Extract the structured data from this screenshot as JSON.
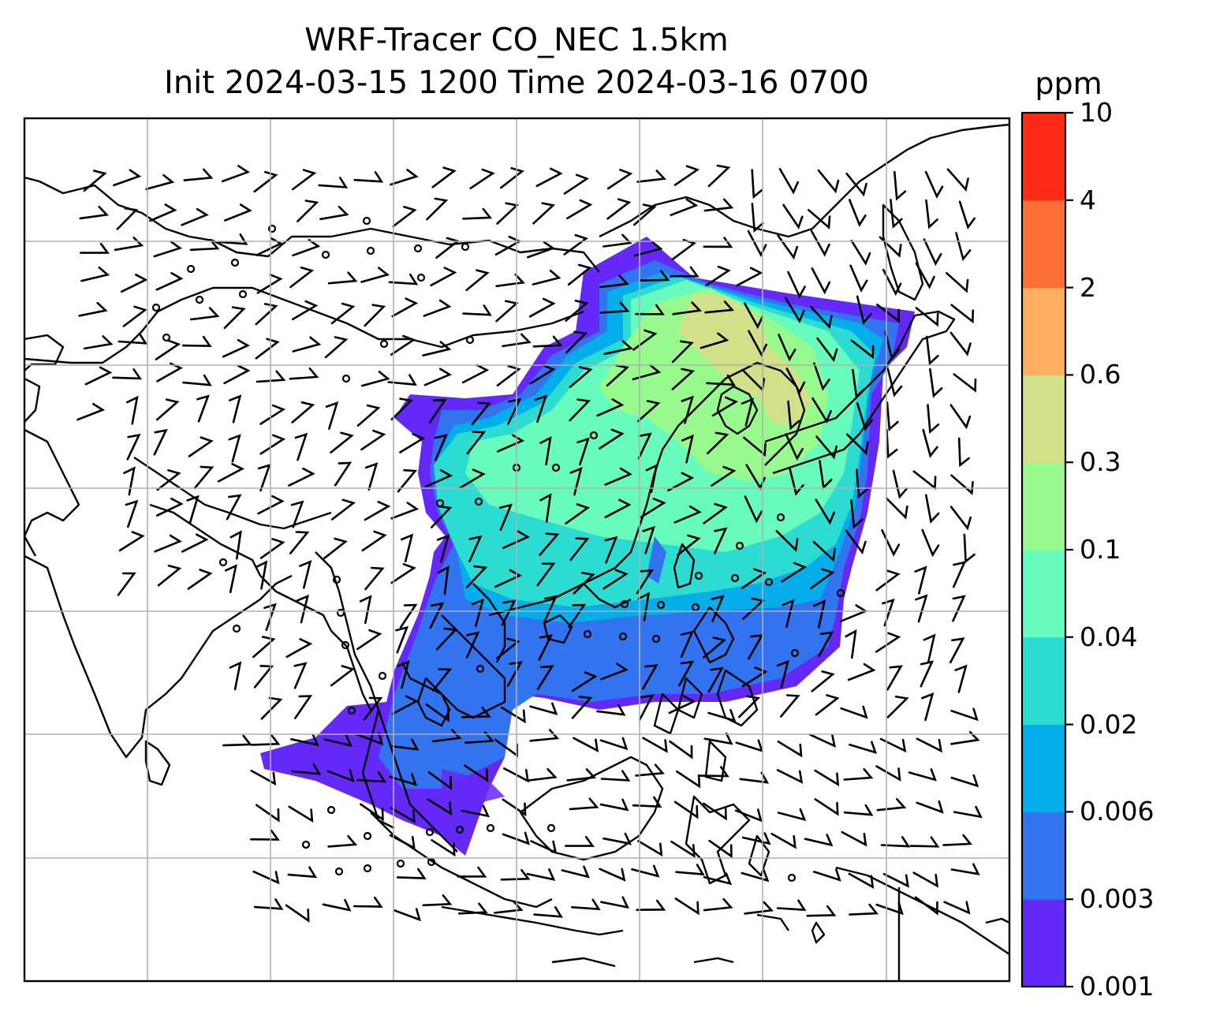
{
  "title": {
    "line1": "WRF-Tracer CO_NEC 1.5km",
    "line2": "Init 2024-03-15 1200 Time 2024-03-16 0700"
  },
  "colorbar": {
    "units": "ppm",
    "ticks": [
      "0.001",
      "0.003",
      "0.006",
      "0.02",
      "0.04",
      "0.1",
      "0.3",
      "0.6",
      "2",
      "4",
      "10"
    ],
    "colors": [
      "#6428f8",
      "#3273f0",
      "#03aeea",
      "#2cdcd2",
      "#68fbbe",
      "#98fa8d",
      "#d2e08a",
      "#fdae60",
      "#fe7038",
      "#fe2a16"
    ]
  },
  "map": {
    "gridlines": true,
    "gridline_color": "#b0b0b0",
    "field_name": "CO_NEC",
    "wind_barbs": true
  }
}
